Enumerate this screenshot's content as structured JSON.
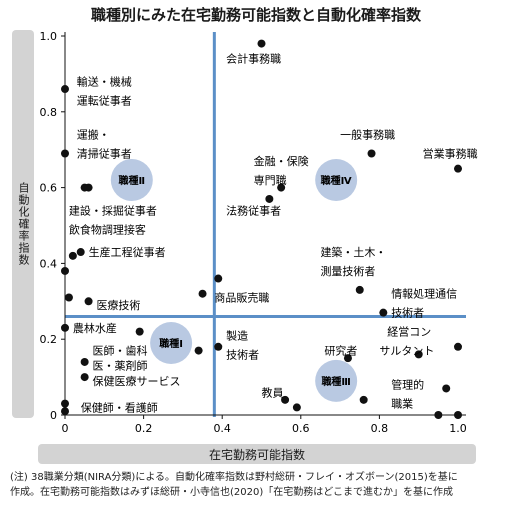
{
  "page": {
    "title": "職種別にみた在宅勤務可能指数と自動化確率指数",
    "note_line1": "(注) 38職業分類(NIRA分類)による。自動化確率指数は野村総研・フレイ・オズボーン(2015)を基に",
    "note_line2": "作成。在宅勤務可能指数はみずほ総研・小寺信也(2020)「在宅勤務はどこまで進むか」を基に作成"
  },
  "chart_data": {
    "type": "scatter",
    "title": "職種別にみた在宅勤務可能指数と自動化確率指数",
    "xlabel": "在宅勤務可能指数",
    "ylabel": "自動化確率指数",
    "xlim": [
      0,
      1
    ],
    "ylim": [
      0,
      1
    ],
    "xticks": [
      "0",
      "0.2",
      "0.4",
      "0.6",
      "0.8",
      "1.0"
    ],
    "yticks": [
      "0",
      "0.2",
      "0.4",
      "0.6",
      "0.8",
      "1.0"
    ],
    "grid": false,
    "dividers": {
      "x": 0.38,
      "y": 0.26
    },
    "colors": {
      "divider": "#5b8fc7",
      "point": "#111111",
      "quadrant": "#b9c9e2",
      "axis_band": "#d3d3d3"
    },
    "quadrants": [
      {
        "label": "職種Ⅰ",
        "x": 0.27,
        "y": 0.19
      },
      {
        "label": "職種Ⅱ",
        "x": 0.17,
        "y": 0.62
      },
      {
        "label": "職種Ⅲ",
        "x": 0.69,
        "y": 0.09
      },
      {
        "label": "職種Ⅳ",
        "x": 0.69,
        "y": 0.62
      }
    ],
    "points": [
      {
        "x": 0.0,
        "y": 0.86
      },
      {
        "x": 0.0,
        "y": 0.69
      },
      {
        "x": 0.05,
        "y": 0.6
      },
      {
        "x": 0.06,
        "y": 0.6
      },
      {
        "x": 0.02,
        "y": 0.42
      },
      {
        "x": 0.04,
        "y": 0.43
      },
      {
        "x": 0.0,
        "y": 0.38
      },
      {
        "x": 0.01,
        "y": 0.31
      },
      {
        "x": 0.06,
        "y": 0.3
      },
      {
        "x": 0.0,
        "y": 0.23
      },
      {
        "x": 0.19,
        "y": 0.22
      },
      {
        "x": 0.05,
        "y": 0.14
      },
      {
        "x": 0.05,
        "y": 0.1
      },
      {
        "x": 0.0,
        "y": 0.03
      },
      {
        "x": 0.0,
        "y": 0.01
      },
      {
        "x": 0.34,
        "y": 0.17
      },
      {
        "x": 0.35,
        "y": 0.32
      },
      {
        "x": 0.39,
        "y": 0.36
      },
      {
        "x": 0.39,
        "y": 0.18
      },
      {
        "x": 0.5,
        "y": 0.98
      },
      {
        "x": 0.52,
        "y": 0.57
      },
      {
        "x": 0.55,
        "y": 0.6
      },
      {
        "x": 0.78,
        "y": 0.69
      },
      {
        "x": 1.0,
        "y": 0.65
      },
      {
        "x": 0.75,
        "y": 0.33
      },
      {
        "x": 0.81,
        "y": 0.27
      },
      {
        "x": 0.72,
        "y": 0.15
      },
      {
        "x": 0.9,
        "y": 0.16
      },
      {
        "x": 1.0,
        "y": 0.18
      },
      {
        "x": 0.56,
        "y": 0.04
      },
      {
        "x": 0.59,
        "y": 0.02
      },
      {
        "x": 0.76,
        "y": 0.04
      },
      {
        "x": 0.97,
        "y": 0.07
      },
      {
        "x": 0.95,
        "y": 0.0
      },
      {
        "x": 1.0,
        "y": 0.0
      }
    ],
    "annotations": [
      {
        "text": "会計事務職",
        "x": 0.41,
        "y": 0.94
      },
      {
        "text": "輸送・機械",
        "x": 0.03,
        "y": 0.88
      },
      {
        "text": "運転従事者",
        "x": 0.03,
        "y": 0.83
      },
      {
        "text": "運搬・",
        "x": 0.03,
        "y": 0.74
      },
      {
        "text": "清掃従事者",
        "x": 0.03,
        "y": 0.69
      },
      {
        "text": "一般事務職",
        "x": 0.7,
        "y": 0.74
      },
      {
        "text": "営業事務職",
        "x": 0.91,
        "y": 0.69
      },
      {
        "text": "金融・保険",
        "x": 0.48,
        "y": 0.67
      },
      {
        "text": "専門職",
        "x": 0.48,
        "y": 0.62
      },
      {
        "text": "建設・採掘従事者",
        "x": 0.01,
        "y": 0.54
      },
      {
        "text": "法務従事者",
        "x": 0.41,
        "y": 0.54
      },
      {
        "text": "飲食物調理接客",
        "x": 0.01,
        "y": 0.49
      },
      {
        "text": "生産工程従事者",
        "x": 0.06,
        "y": 0.43
      },
      {
        "text": "建築・土木・",
        "x": 0.65,
        "y": 0.43
      },
      {
        "text": "測量技術者",
        "x": 0.65,
        "y": 0.38
      },
      {
        "text": "情報処理通信",
        "x": 0.83,
        "y": 0.32
      },
      {
        "text": "技術者",
        "x": 0.83,
        "y": 0.27
      },
      {
        "text": "商品販売職",
        "x": 0.38,
        "y": 0.31
      },
      {
        "text": "医療技術",
        "x": 0.08,
        "y": 0.29
      },
      {
        "text": "農林水産",
        "x": 0.02,
        "y": 0.23
      },
      {
        "text": "経営コン",
        "x": 0.82,
        "y": 0.22
      },
      {
        "text": "サルタント",
        "x": 0.8,
        "y": 0.17
      },
      {
        "text": "製造",
        "x": 0.41,
        "y": 0.21
      },
      {
        "text": "技術者",
        "x": 0.41,
        "y": 0.16
      },
      {
        "text": "医師・歯科",
        "x": 0.07,
        "y": 0.17
      },
      {
        "text": "研究者",
        "x": 0.66,
        "y": 0.17
      },
      {
        "text": "医・薬剤師",
        "x": 0.07,
        "y": 0.13
      },
      {
        "text": "保健医療サービス",
        "x": 0.07,
        "y": 0.09
      },
      {
        "text": "管理的",
        "x": 0.83,
        "y": 0.08
      },
      {
        "text": "職業",
        "x": 0.83,
        "y": 0.03
      },
      {
        "text": "教員",
        "x": 0.5,
        "y": 0.06
      },
      {
        "text": "保健師・看護師",
        "x": 0.04,
        "y": 0.02
      }
    ]
  }
}
